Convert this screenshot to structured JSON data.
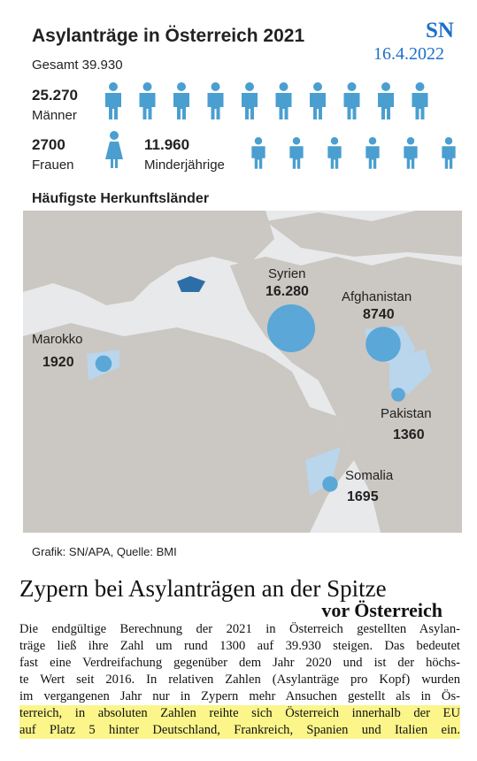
{
  "header": {
    "title": "Asylanträge in Österreich 2021",
    "source_mark": "SN",
    "date": "16.4.2022",
    "total": "Gesamt 39.930"
  },
  "stats": [
    {
      "value": "25.270",
      "label": "Männer"
    },
    {
      "value": "2700",
      "label": "Frauen"
    },
    {
      "value": "11.960",
      "label": "Minderjährige"
    }
  ],
  "map": {
    "title": "Häufigste Herkunftsländer",
    "countries": [
      {
        "name": "Syrien",
        "value": 16280,
        "label": "16.280"
      },
      {
        "name": "Afghanistan",
        "value": 8740,
        "label": "8740"
      },
      {
        "name": "Marokko",
        "value": 1920,
        "label": "1920"
      },
      {
        "name": "Pakistan",
        "value": 1360,
        "label": "1360"
      },
      {
        "name": "Somalia",
        "value": 1695,
        "label": "1695"
      }
    ]
  },
  "credit": "Grafik: SN/APA, Quelle: BMI",
  "article": {
    "headline": "Zypern bei Asylanträgen an der Spitze",
    "subheadline": "vor Österreich",
    "lines": [
      "Die endgültige Berechnung der 2021 in Österreich gestellten Asylan-",
      "träge ließ ihre Zahl um rund 1300 auf 39.930 steigen. Das bedeutet",
      "fast eine Verdreifachung gegenüber dem Jahr 2020 und ist der höchs-",
      "te Wert seit 2016. In relativen Zahlen (Asylanträge pro Kopf) wurden",
      "im vergangenen Jahr nur in Zypern mehr Ansuchen gestellt als in Ös-",
      "terreich, in absoluten Zahlen reihte sich Österreich innerhalb der EU",
      "auf Platz 5 hinter Deutschland, Frankreich, Spanien und Italien ein."
    ]
  }
}
